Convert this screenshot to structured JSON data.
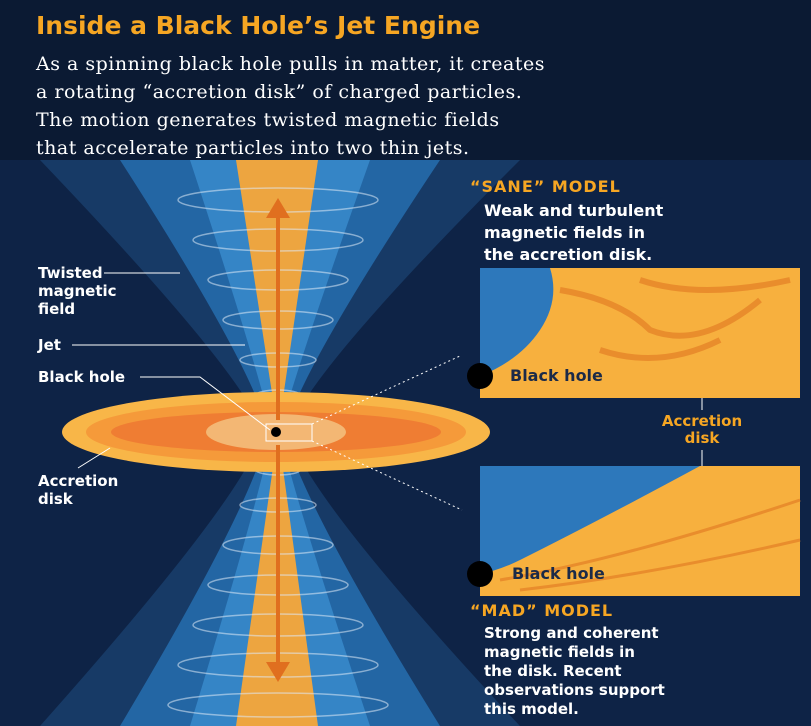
{
  "header": {
    "title": "Inside a Black Hole’s Jet Engine",
    "intro": [
      "As a spinning black hole pulls in matter, it creates",
      "a rotating “accretion disk” of charged particles.",
      "The motion generates twisted magnetic fields",
      "that accelerate particles into two thin jets."
    ]
  },
  "labels": {
    "twisted_field": [
      "Twisted",
      "magnetic",
      "field"
    ],
    "jet": "Jet",
    "black_hole": "Black hole",
    "accretion_disk": [
      "Accretion",
      "disk"
    ]
  },
  "sane": {
    "heading": "“SANE” MODEL",
    "description": [
      "Weak and turbulent",
      "magnetic fields in",
      "the accretion disk."
    ],
    "panel_label": "Black hole"
  },
  "shared": {
    "accretion_disk": [
      "Accretion",
      "disk"
    ]
  },
  "mad": {
    "heading": "“MAD” MODEL",
    "description": [
      "Strong and coherent",
      "magnetic fields in",
      "the disk. Recent",
      "observations support",
      "this model."
    ],
    "panel_label": "Black hole"
  }
}
